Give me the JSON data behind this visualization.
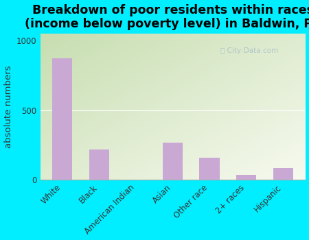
{
  "categories": [
    "White",
    "Black",
    "American Indian",
    "Asian",
    "Other race",
    "2+ races",
    "Hispanic"
  ],
  "values": [
    870,
    215,
    0,
    265,
    160,
    35,
    85
  ],
  "bar_color": "#c9a8d4",
  "title_line1": "Breakdown of poor residents within races",
  "title_line2": "(income below poverty level) in Baldwin, PA",
  "ylabel": "absolute numbers",
  "ylim": [
    0,
    1050
  ],
  "yticks": [
    0,
    500,
    1000
  ],
  "background_outer": "#00eeff",
  "watermark": "City-Data.com",
  "title_fontsize": 12.5,
  "ylabel_fontsize": 9.5,
  "tick_fontsize": 8.5
}
